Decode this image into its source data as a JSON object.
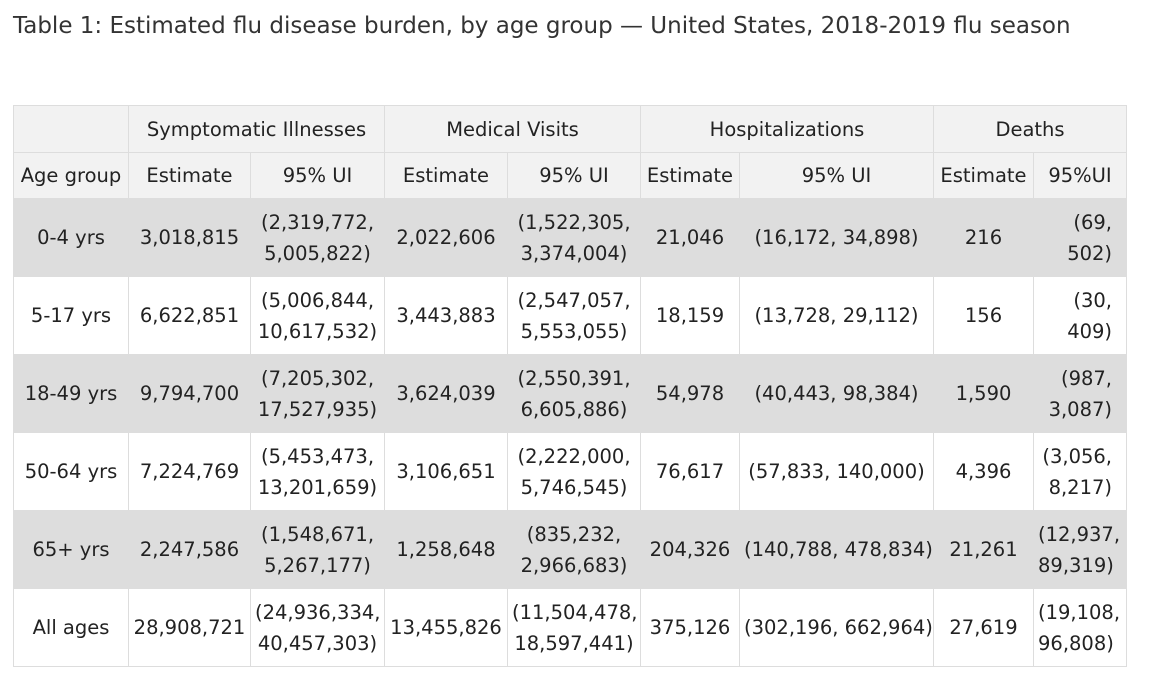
{
  "caption": "Table 1: Estimated flu disease burden, by age group — United States, 2018-2019 flu season",
  "table": {
    "groups": {
      "symptomatic": "Symptomatic Illnesses",
      "medical": "Medical Visits",
      "hospitalizations": "Hospitalizations",
      "deaths": "Deaths"
    },
    "subheaders": {
      "age_group": "Age group",
      "ill_est": "Estimate",
      "ill_ui": "95% UI",
      "med_est": "Estimate",
      "med_ui": "95% UI",
      "hosp_est": "Estimate",
      "hosp_ui": "95% UI",
      "death_est": "Estimate",
      "death_ui": "95%UI"
    },
    "rows": [
      {
        "age": "0-4 yrs",
        "ill_est": "3,018,815",
        "ill_ui_1": "(2,319,772,",
        "ill_ui_2": "5,005,822)",
        "med_est": "2,022,606",
        "med_ui_1": "(1,522,305,",
        "med_ui_2": "3,374,004)",
        "hosp_est": "21,046",
        "hosp_ui": "(16,172, 34,898)",
        "death_est": "216",
        "death_ui_1": "(69,",
        "death_ui_2": "502)"
      },
      {
        "age": "5-17 yrs",
        "ill_est": "6,622,851",
        "ill_ui_1": "(5,006,844,",
        "ill_ui_2": "10,617,532)",
        "med_est": "3,443,883",
        "med_ui_1": "(2,547,057,",
        "med_ui_2": "5,553,055)",
        "hosp_est": "18,159",
        "hosp_ui": "(13,728, 29,112)",
        "death_est": "156",
        "death_ui_1": "(30,",
        "death_ui_2": "409)"
      },
      {
        "age": "18-49 yrs",
        "ill_est": "9,794,700",
        "ill_ui_1": "(7,205,302,",
        "ill_ui_2": "17,527,935)",
        "med_est": "3,624,039",
        "med_ui_1": "(2,550,391,",
        "med_ui_2": "6,605,886)",
        "hosp_est": "54,978",
        "hosp_ui": "(40,443, 98,384)",
        "death_est": "1,590",
        "death_ui_1": "(987,",
        "death_ui_2": "3,087)"
      },
      {
        "age": "50-64 yrs",
        "ill_est": "7,224,769",
        "ill_ui_1": "(5,453,473,",
        "ill_ui_2": "13,201,659)",
        "med_est": "3,106,651",
        "med_ui_1": "(2,222,000,",
        "med_ui_2": "5,746,545)",
        "hosp_est": "76,617",
        "hosp_ui": "(57,833, 140,000)",
        "death_est": "4,396",
        "death_ui_1": "(3,056,",
        "death_ui_2": "8,217)"
      },
      {
        "age": "65+ yrs",
        "ill_est": "2,247,586",
        "ill_ui_1": "(1,548,671,",
        "ill_ui_2": "5,267,177)",
        "med_est": "1,258,648",
        "med_ui_1": "(835,232,",
        "med_ui_2": "2,966,683)",
        "hosp_est": "204,326",
        "hosp_ui": "(140,788, 478,834)",
        "death_est": "21,261",
        "death_ui_1": "(12,937,",
        "death_ui_2": "89,319)"
      },
      {
        "age": "All ages",
        "ill_est": "28,908,721",
        "ill_ui_1": "(24,936,334,",
        "ill_ui_2": "40,457,303)",
        "med_est": "13,455,826",
        "med_ui_1": "(11,504,478,",
        "med_ui_2": "18,597,441)",
        "hosp_est": "375,126",
        "hosp_ui": "(302,196, 662,964)",
        "death_est": "27,619",
        "death_ui_1": "(19,108,",
        "death_ui_2": "96,808)"
      }
    ]
  }
}
